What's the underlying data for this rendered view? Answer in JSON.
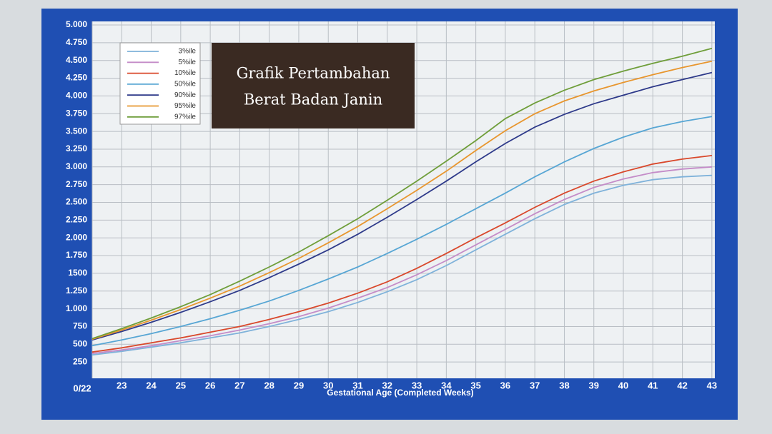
{
  "chart_data": {
    "type": "line",
    "title": [
      "Grafik Pertambahan",
      "Berat Badan Janin"
    ],
    "xlabel": "Gestational Age (Completed Weeks)",
    "x": [
      22,
      23,
      24,
      25,
      26,
      27,
      28,
      29,
      30,
      31,
      32,
      33,
      34,
      35,
      36,
      37,
      38,
      39,
      40,
      41,
      42,
      43
    ],
    "series": [
      {
        "name": "3%ile",
        "color": "#7fb2da",
        "values": [
          350,
          400,
          460,
          520,
          590,
          660,
          750,
          850,
          960,
          1090,
          1240,
          1410,
          1610,
          1830,
          2050,
          2270,
          2470,
          2630,
          2740,
          2820,
          2860,
          2880
        ]
      },
      {
        "name": "5%ile",
        "color": "#c48cc8",
        "values": [
          370,
          420,
          480,
          550,
          620,
          700,
          790,
          890,
          1010,
          1150,
          1300,
          1480,
          1680,
          1900,
          2120,
          2340,
          2540,
          2710,
          2830,
          2920,
          2970,
          3000
        ]
      },
      {
        "name": "10%ile",
        "color": "#d9482b",
        "values": [
          390,
          450,
          520,
          590,
          670,
          750,
          850,
          960,
          1080,
          1220,
          1380,
          1570,
          1780,
          2000,
          2210,
          2430,
          2630,
          2800,
          2930,
          3040,
          3110,
          3160
        ]
      },
      {
        "name": "50%ile",
        "color": "#57a6d4",
        "values": [
          480,
          560,
          650,
          750,
          860,
          980,
          1110,
          1260,
          1420,
          1590,
          1780,
          1980,
          2190,
          2410,
          2630,
          2860,
          3070,
          3260,
          3420,
          3550,
          3640,
          3710
        ]
      },
      {
        "name": "90%ile",
        "color": "#2e3a8a",
        "values": [
          560,
          680,
          810,
          950,
          1100,
          1260,
          1440,
          1630,
          1830,
          2050,
          2290,
          2540,
          2800,
          3070,
          3330,
          3560,
          3740,
          3890,
          4010,
          4130,
          4230,
          4330
        ]
      },
      {
        "name": "95%ile",
        "color": "#e8962e",
        "values": [
          570,
          700,
          840,
          990,
          1150,
          1320,
          1510,
          1710,
          1930,
          2160,
          2410,
          2670,
          2940,
          3230,
          3510,
          3750,
          3930,
          4070,
          4190,
          4300,
          4400,
          4490
        ]
      },
      {
        "name": "97%ile",
        "color": "#6f9e3a",
        "values": [
          580,
          720,
          870,
          1030,
          1200,
          1390,
          1590,
          1800,
          2030,
          2270,
          2530,
          2800,
          3080,
          3370,
          3680,
          3900,
          4080,
          4230,
          4350,
          4460,
          4560,
          4670
        ]
      }
    ],
    "xlim": [
      22,
      43.1
    ],
    "xticks": [
      {
        "value": 22,
        "label": "0/22"
      },
      23,
      24,
      25,
      26,
      27,
      28,
      29,
      30,
      31,
      32,
      33,
      34,
      35,
      36,
      37,
      38,
      39,
      40,
      41,
      42,
      43
    ],
    "ylim": [
      0,
      5000
    ],
    "yticks": [
      250,
      500,
      750,
      {
        "value": 1000,
        "label": "1.000"
      },
      {
        "value": 1250,
        "label": "1.250"
      },
      1500,
      {
        "value": 1750,
        "label": "1.750"
      },
      {
        "value": 2000,
        "label": "2.000"
      },
      {
        "value": 2250,
        "label": "2.250"
      },
      {
        "value": 2500,
        "label": "2.500"
      },
      {
        "value": 2750,
        "label": "2.750"
      },
      {
        "value": 3000,
        "label": "3.000"
      },
      {
        "value": 3250,
        "label": "3.250"
      },
      {
        "value": 3500,
        "label": "3.500"
      },
      {
        "value": 3750,
        "label": "3.750"
      },
      {
        "value": 4000,
        "label": "4.000"
      },
      {
        "value": 4250,
        "label": "4.250"
      },
      {
        "value": 4500,
        "label": "4.500"
      },
      {
        "value": 4750,
        "label": "4.750"
      },
      {
        "value": 5000,
        "label": "5.000"
      }
    ],
    "grid": true,
    "legend": "upper left"
  }
}
